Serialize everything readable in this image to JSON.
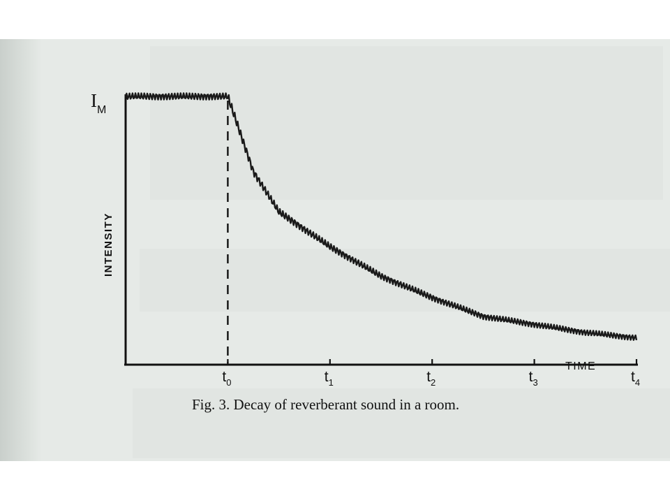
{
  "chart_data": {
    "type": "line",
    "caption": "Fig. 3. Decay of reverberant sound in a room.",
    "ylabel": "INTENSITY",
    "xlabel": "TIME",
    "y_max_label": {
      "main": "I",
      "sub": "M"
    },
    "x_ticks": [
      {
        "main": "t",
        "sub": "0"
      },
      {
        "main": "t",
        "sub": "1"
      },
      {
        "main": "t",
        "sub": "2"
      },
      {
        "main": "t",
        "sub": "3"
      },
      {
        "main": "t",
        "sub": "4"
      }
    ],
    "x_tick_values": [
      0,
      1,
      2,
      3,
      4
    ],
    "xlim": [
      -1,
      4
    ],
    "ylim": [
      0,
      1.1
    ],
    "dashed_marker_x": 0,
    "grid": false,
    "series": [
      {
        "description": "steady wiggly intensity until t0, then decay",
        "x": [
          -1,
          -0.5,
          0,
          0.25,
          0.5,
          1,
          1.5,
          2,
          2.5,
          3,
          3.5,
          4
        ],
        "y": [
          1.0,
          1.0,
          1.0,
          0.72,
          0.57,
          0.44,
          0.33,
          0.25,
          0.18,
          0.15,
          0.12,
          0.1
        ]
      }
    ]
  }
}
